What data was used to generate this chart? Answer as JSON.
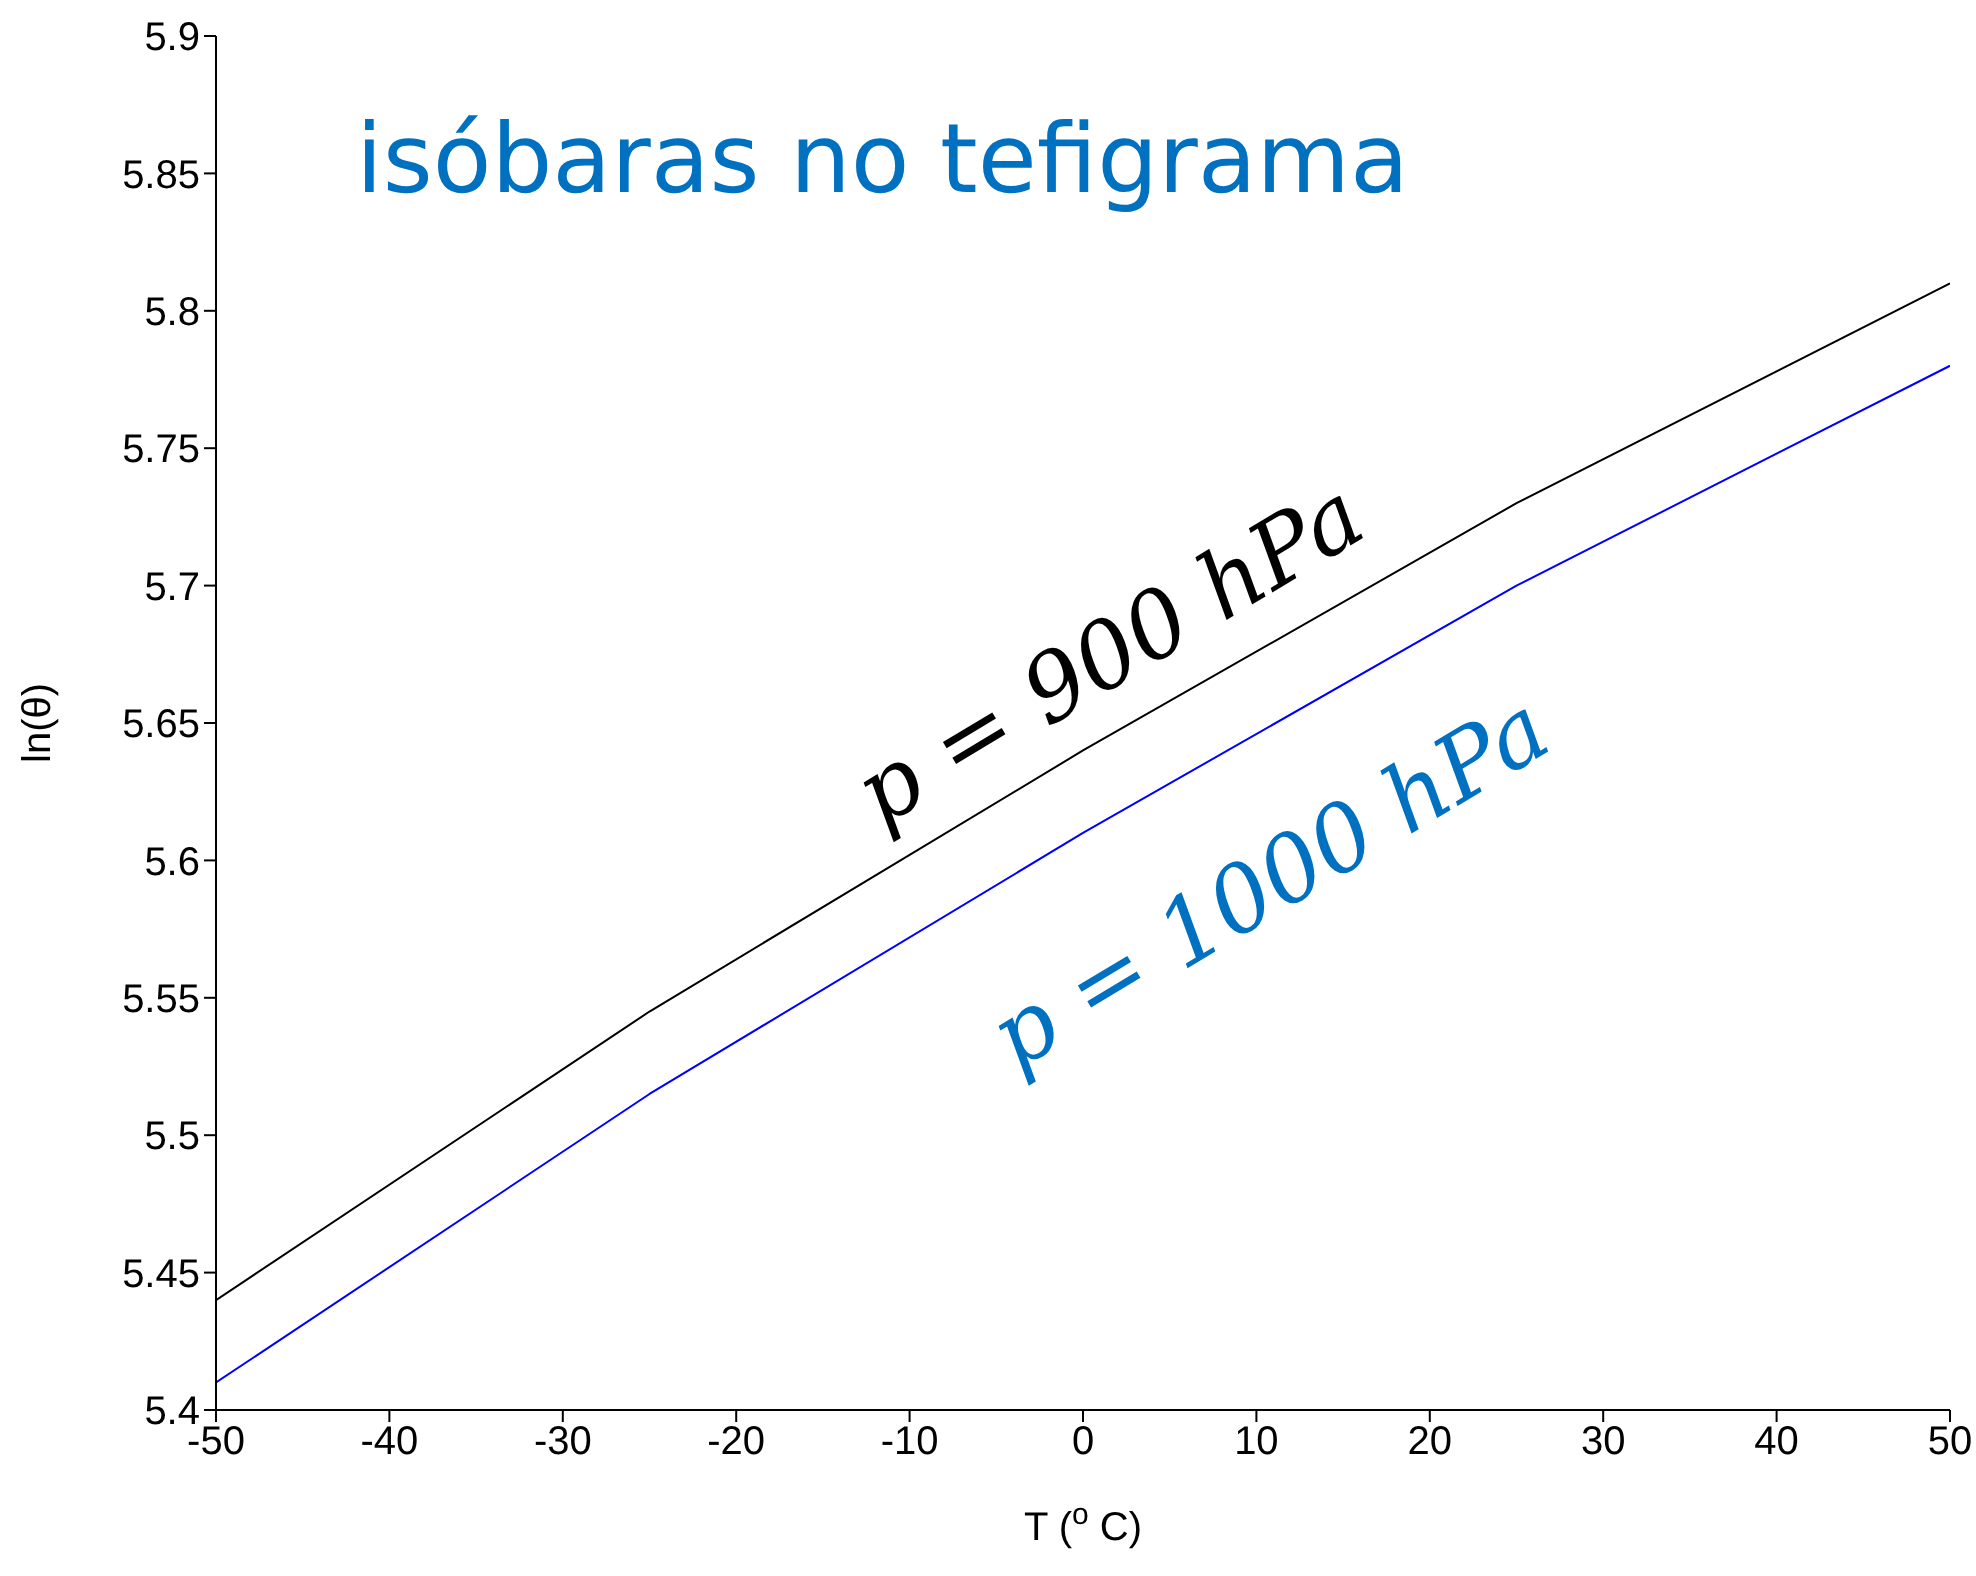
{
  "chart_data": {
    "type": "line",
    "title": "isóbaras no tefigrama",
    "xlabel": "T ($^{o}$ C)",
    "ylabel": "ln(θ)",
    "x": [
      -50,
      -25,
      0,
      25,
      50
    ],
    "series": [
      {
        "name": "p = 900 hPa",
        "color": "#000000",
        "values": [
          5.44,
          5.545,
          5.64,
          5.73,
          5.81
        ]
      },
      {
        "name": "p = 1000 hPa",
        "color": "#0000ff",
        "values": [
          5.41,
          5.515,
          5.61,
          5.7,
          5.78
        ]
      }
    ],
    "xlim": [
      -50,
      50
    ],
    "xticks": [
      -50,
      -40,
      -30,
      -20,
      -10,
      0,
      10,
      20,
      30,
      40,
      50
    ],
    "ylim": [
      5.4,
      5.9
    ],
    "yticks": [
      5.4,
      5.45,
      5.5,
      5.55,
      5.6,
      5.65,
      5.7,
      5.75,
      5.8,
      5.85,
      5.9
    ],
    "grid": false,
    "legend": false,
    "marker": "none",
    "line_style": "solid"
  }
}
